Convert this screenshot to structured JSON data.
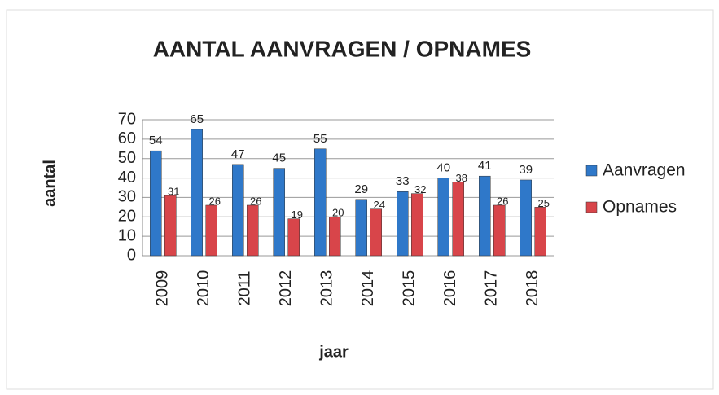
{
  "chart_data": {
    "type": "bar",
    "title": "AANTAL AANVRAGEN / OPNAMES",
    "x_label": "jaar",
    "y_label": "aantal",
    "categories": [
      "2009",
      "2010",
      "2011",
      "2012",
      "2013",
      "2014",
      "2015",
      "2016",
      "2017",
      "2018"
    ],
    "series": [
      {
        "name": "Aanvragen",
        "color": "#2f78c9",
        "values": [
          54,
          65,
          47,
          45,
          55,
          29,
          33,
          40,
          41,
          39
        ]
      },
      {
        "name": "Opnames",
        "color": "#d8454a",
        "values": [
          31,
          26,
          26,
          19,
          20,
          24,
          32,
          38,
          26,
          25
        ]
      }
    ],
    "ylim": [
      0,
      70
    ],
    "yticks": [
      0,
      10,
      20,
      30,
      40,
      50,
      60,
      70
    ],
    "grid": true,
    "legend": "right"
  }
}
